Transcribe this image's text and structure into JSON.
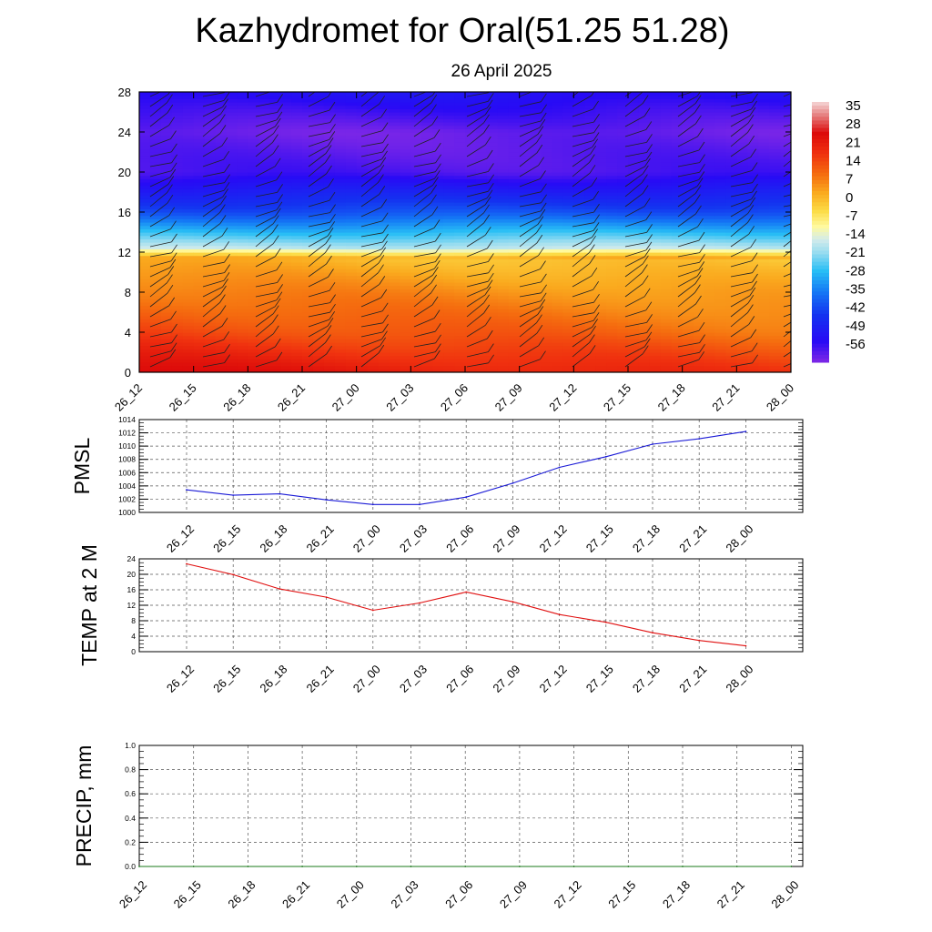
{
  "title": "Kazhydromet for Oral(51.25 51.28)",
  "subtitle": "26 April 2025",
  "colors": {
    "pmsl_line": "#1a1ad6",
    "temp_line": "#e01010",
    "precip_line": "#1a7a1a",
    "grid": "#555555",
    "barb": "#222222"
  },
  "chart_data": [
    {
      "type": "heatmap",
      "name": "temperature-cross-section",
      "xlabel": "",
      "ylabel": "",
      "x_ticks": [
        "26_12",
        "26_15",
        "26_18",
        "26_21",
        "27_00",
        "27_03",
        "27_06",
        "27_09",
        "27_12",
        "27_15",
        "27_18",
        "27_21",
        "28_00"
      ],
      "y_ticks": [
        0,
        4,
        8,
        12,
        16,
        20,
        24,
        28
      ],
      "ylim": [
        0,
        28
      ],
      "colorbar_ticks": [
        "35",
        "28",
        "21",
        "14",
        "7",
        "0",
        "-7",
        "-14",
        "-21",
        "-28",
        "-35",
        "-42",
        "-49",
        "-56"
      ],
      "colorbar_range": [
        -60,
        40
      ],
      "approx_profile_levels": [
        0,
        4,
        8,
        11.5,
        12.5,
        16,
        20,
        24,
        28
      ],
      "approx_profile_values": [
        28,
        18,
        11,
        4,
        -15,
        -38,
        -55,
        -58,
        -50
      ],
      "wind_barbs": true
    },
    {
      "type": "line",
      "name": "PMSL",
      "ylabel": "PMSL",
      "x": [
        "26_12",
        "26_15",
        "26_18",
        "26_21",
        "27_00",
        "27_03",
        "27_06",
        "27_09",
        "27_12",
        "27_15",
        "27_18",
        "27_21",
        "28_00"
      ],
      "values": [
        1003.4,
        1002.6,
        1002.8,
        1001.9,
        1001.2,
        1001.2,
        1002.3,
        1004.4,
        1006.8,
        1008.4,
        1010.3,
        1011.1,
        1012.2
      ],
      "ylim": [
        1000,
        1014
      ],
      "y_ticks": [
        1000,
        1002,
        1004,
        1006,
        1008,
        1010,
        1012,
        1014
      ],
      "grid": true
    },
    {
      "type": "line",
      "name": "TEMP at 2 M",
      "ylabel": "TEMP at 2 M",
      "x": [
        "26_12",
        "26_15",
        "26_18",
        "26_21",
        "27_00",
        "27_03",
        "27_06",
        "27_09",
        "27_12",
        "27_15",
        "27_18",
        "27_21",
        "28_00"
      ],
      "values": [
        22.7,
        19.9,
        16.2,
        14.1,
        10.7,
        12.6,
        15.4,
        12.9,
        9.6,
        7.6,
        4.9,
        2.9,
        1.5
      ],
      "ylim": [
        0,
        24
      ],
      "y_ticks": [
        0,
        4,
        8,
        12,
        16,
        20,
        24
      ],
      "grid": true
    },
    {
      "type": "line",
      "name": "PRECIP, mm",
      "ylabel": "PRECIP, mm",
      "x": [
        "26_12",
        "26_15",
        "26_18",
        "26_21",
        "27_00",
        "27_03",
        "27_06",
        "27_09",
        "27_12",
        "27_15",
        "27_18",
        "27_21",
        "28_00"
      ],
      "values": [
        0,
        0,
        0,
        0,
        0,
        0,
        0,
        0,
        0,
        0,
        0,
        0,
        0
      ],
      "ylim": [
        0,
        1.0
      ],
      "y_ticks": [
        "0.0",
        "0.2",
        "0.4",
        "0.6",
        "0.8",
        "1.0"
      ],
      "grid": true
    }
  ]
}
